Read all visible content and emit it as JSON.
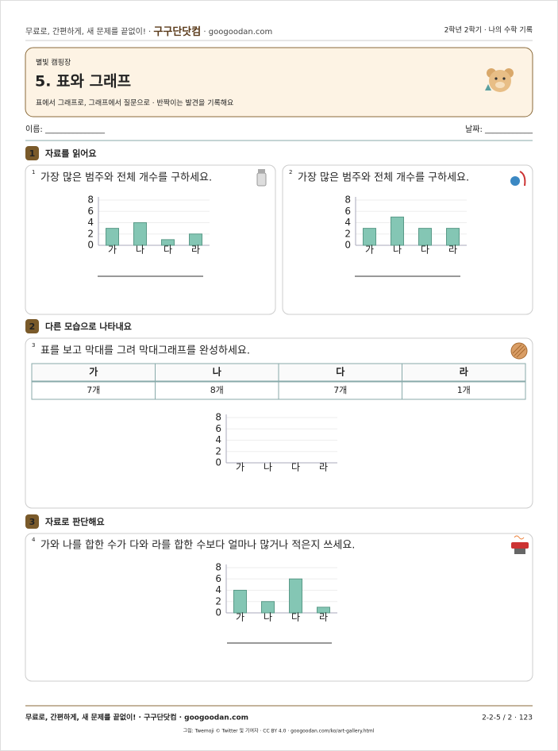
{
  "header": {
    "left": "무료로, 간편하게, 새 문제를 끝없이! · ",
    "brand": "구구단닷컴",
    "site": " · googoodan.com",
    "right": "2학년 2학기 · 나의 수학 기록"
  },
  "title_box": {
    "kicker": "별빛 캠핑장",
    "title": "5. 표와 그래프",
    "subtitle": "표에서 그래프로, 그래프에서 질문으로 · 반짝이는 발견을 기록해요"
  },
  "name_label": "이름: _______________",
  "date_label": "날짜: ____________",
  "sections": [
    {
      "number": "1",
      "title": "자료를 읽어요",
      "problems": [
        {
          "number": "1",
          "question": "가장 많은 범주와 전체 개수를 구하세요.",
          "chart": {
            "type": "bar",
            "categories": [
              "가",
              "나",
              "다",
              "라"
            ],
            "values": [
              3,
              4,
              1,
              2
            ],
            "ylim": [
              0,
              8
            ],
            "yticks": [
              0,
              2,
              4,
              6,
              8
            ]
          }
        },
        {
          "number": "2",
          "question": "가장 많은 범주와 전체 개수를 구하세요.",
          "chart": {
            "type": "bar",
            "categories": [
              "가",
              "나",
              "다",
              "라"
            ],
            "values": [
              3,
              5,
              3,
              3
            ],
            "ylim": [
              0,
              8
            ],
            "yticks": [
              0,
              2,
              4,
              6,
              8
            ]
          }
        }
      ]
    },
    {
      "number": "2",
      "title": "다른 모습으로 나타내요",
      "problems": [
        {
          "number": "3",
          "question": "표를 보고 막대를 그려 막대그래프를 완성하세요.",
          "table": {
            "header": [
              "가",
              "나",
              "다",
              "라"
            ],
            "row": [
              "7개",
              "8개",
              "7개",
              "1개"
            ]
          },
          "chart": {
            "type": "bar",
            "categories": [
              "가",
              "나",
              "다",
              "라"
            ],
            "ylim": [
              0,
              8
            ],
            "yticks": [
              0,
              2,
              4,
              6,
              8
            ]
          }
        }
      ]
    },
    {
      "number": "3",
      "title": "자료로 판단해요",
      "problems": [
        {
          "number": "4",
          "question": "가와 나를 합한 수가 다와 라를 합한 수보다 얼마나 많거나 적은지 쓰세요.",
          "chart": {
            "type": "bar",
            "categories": [
              "가",
              "나",
              "다",
              "라"
            ],
            "values": [
              4,
              2,
              6,
              1
            ],
            "ylim": [
              0,
              8
            ],
            "yticks": [
              0,
              2,
              4,
              6,
              8
            ]
          }
        }
      ]
    }
  ],
  "footer": {
    "left": "무료로, 간편하게, 새 문제를 끝없이! · 구구단닷컴 · googoodan.com",
    "right": "2-2-5 / 2 · 123",
    "credit": "그림: Twemoji © Twitter 및 기여자 · CC BY 4.0 · googoodan.com/ko/art-gallery.html"
  }
}
